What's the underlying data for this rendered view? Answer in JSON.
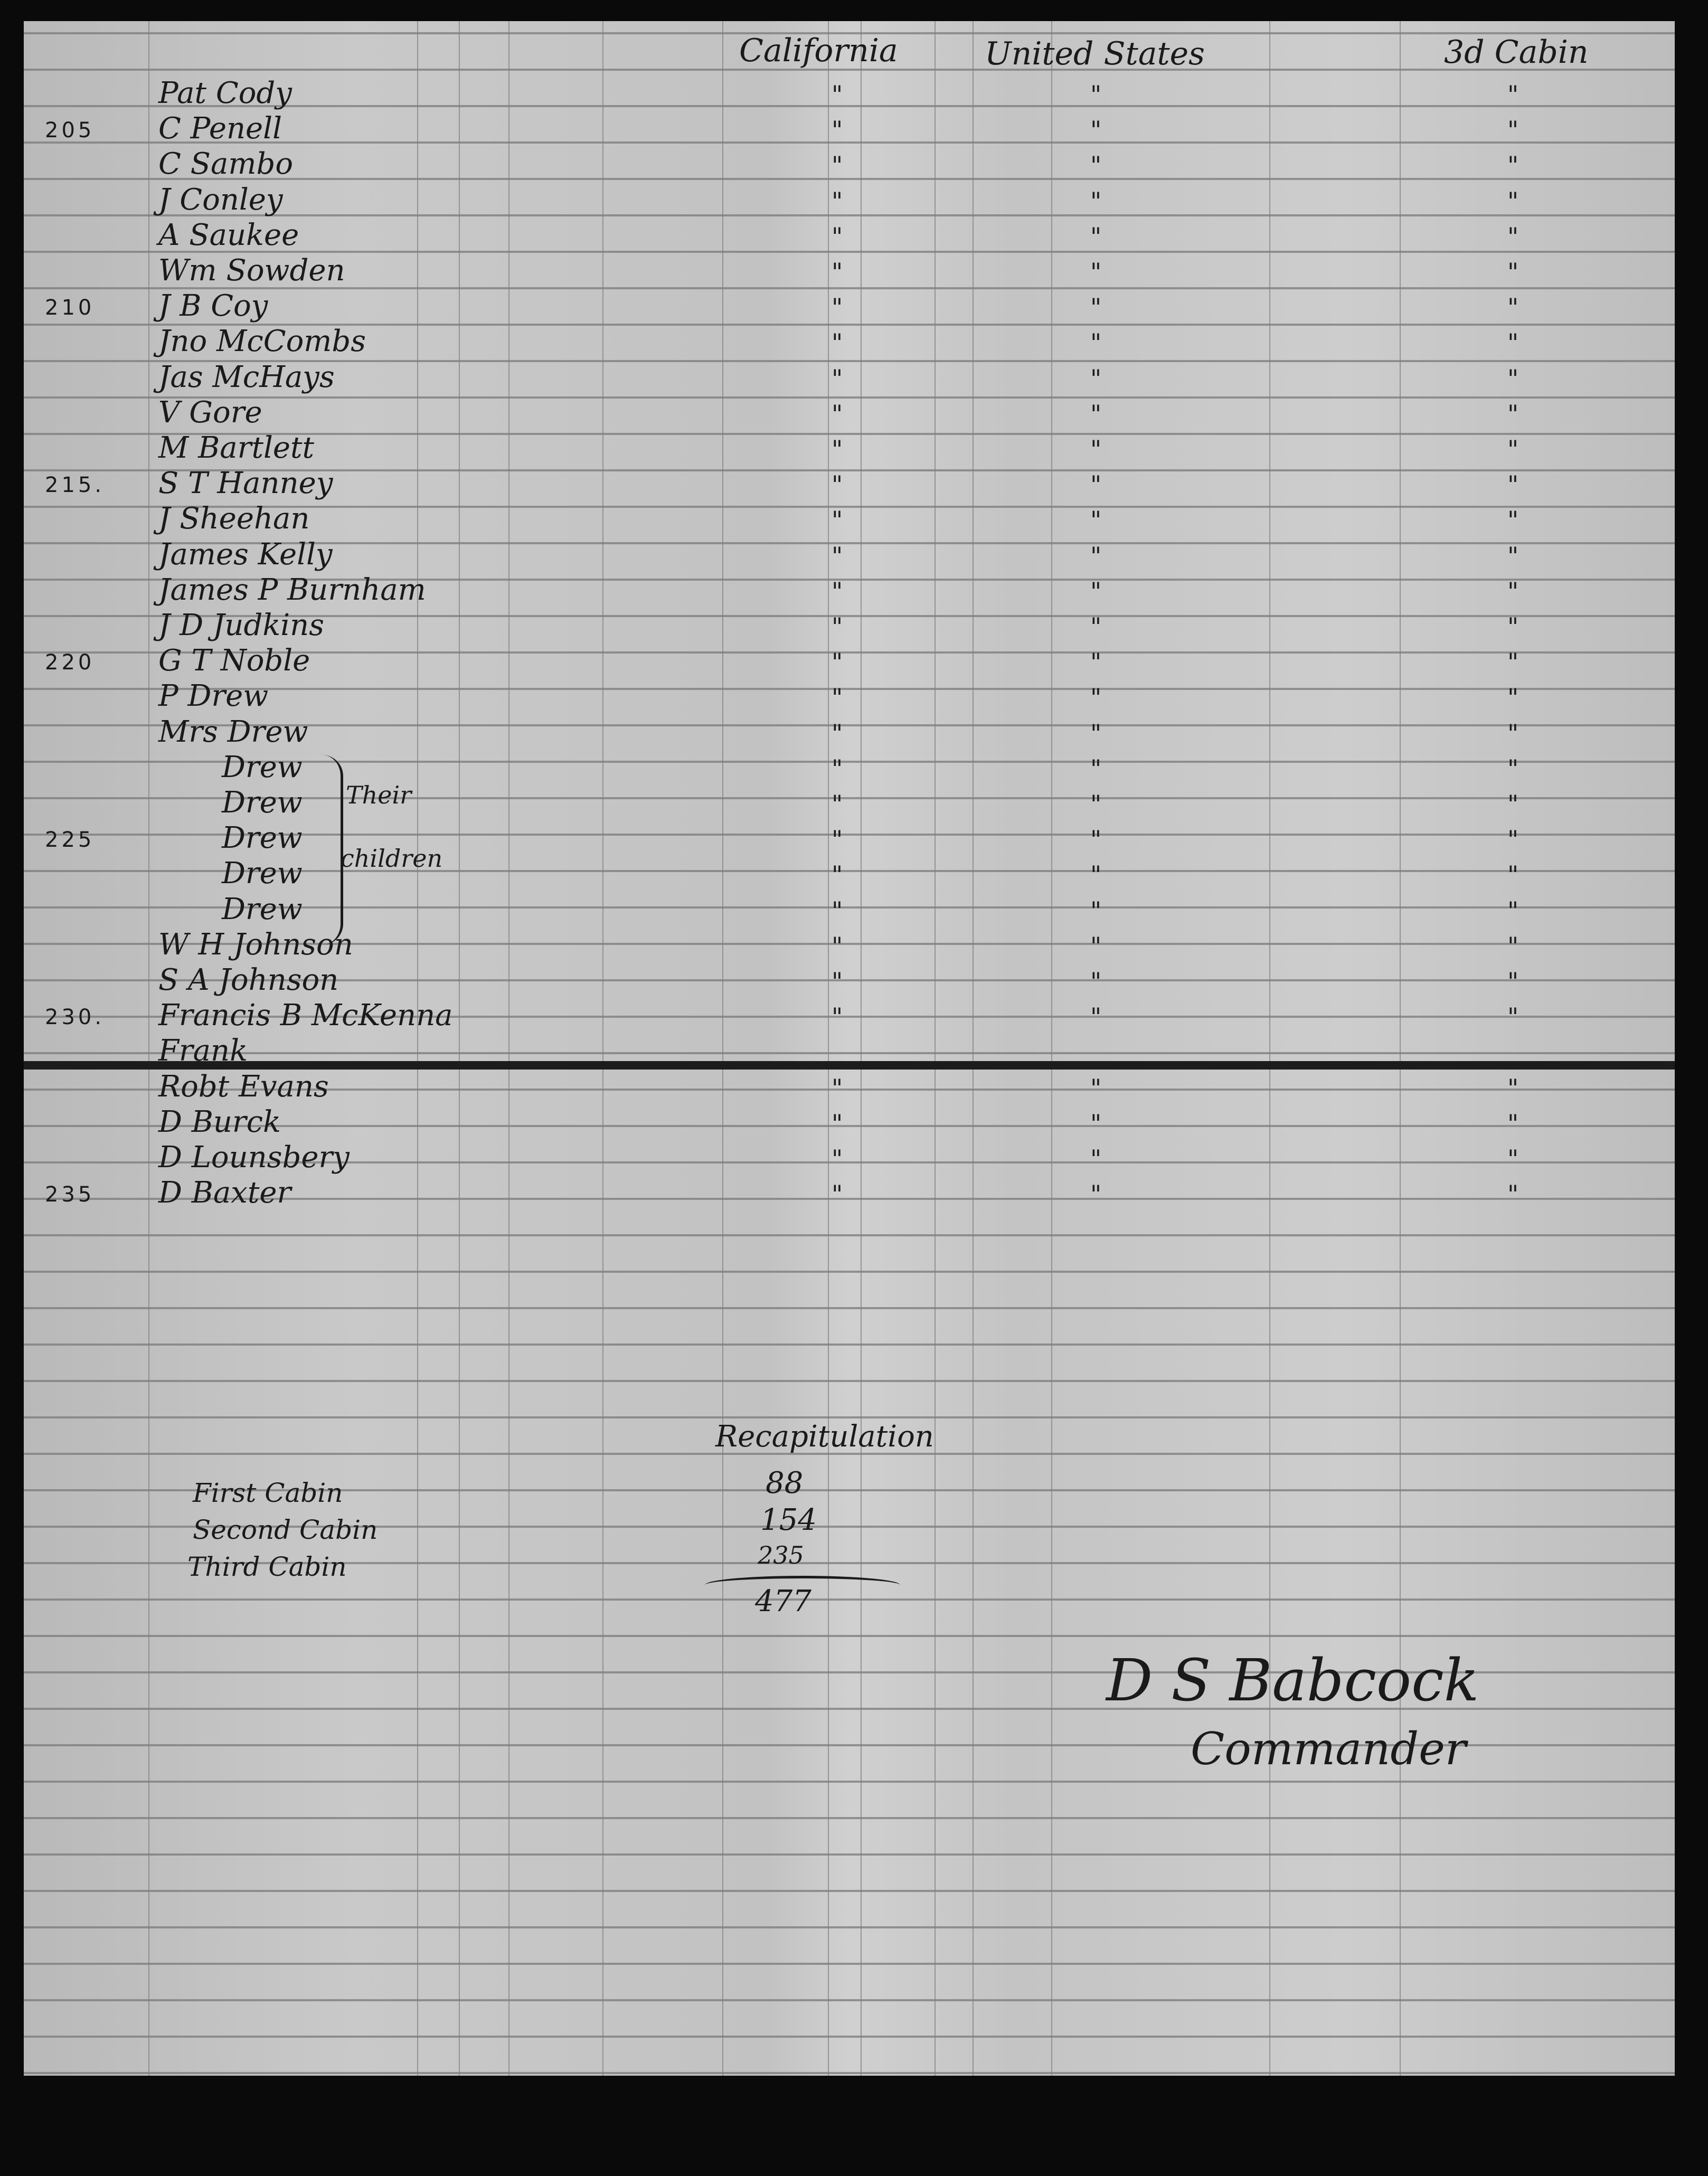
{
  "headers": {
    "name": "",
    "california": "California",
    "united_states": "United States",
    "third_cabin": "3d Cabin"
  },
  "ditto_mark": "\"",
  "rows": [
    {
      "number": "",
      "name": "Pat Cody",
      "ditto": [
        true,
        true,
        true
      ]
    },
    {
      "number": "205",
      "name": "C Penell",
      "ditto": [
        true,
        true,
        true
      ]
    },
    {
      "number": "",
      "name": "C Sambo",
      "ditto": [
        true,
        true,
        true
      ]
    },
    {
      "number": "",
      "name": "J Conley",
      "ditto": [
        true,
        true,
        true
      ]
    },
    {
      "number": "",
      "name": "A Saukee",
      "ditto": [
        true,
        true,
        true
      ]
    },
    {
      "number": "",
      "name": "Wm Sowden",
      "ditto": [
        true,
        true,
        true
      ]
    },
    {
      "number": "210",
      "name": "J B Coy",
      "ditto": [
        true,
        true,
        true
      ]
    },
    {
      "number": "",
      "name": "Jno McCombs",
      "ditto": [
        true,
        true,
        true
      ]
    },
    {
      "number": "",
      "name": "Jas McHays",
      "ditto": [
        true,
        true,
        true
      ]
    },
    {
      "number": "",
      "name": "V Gore",
      "ditto": [
        true,
        true,
        true
      ]
    },
    {
      "number": "",
      "name": "M Bartlett",
      "ditto": [
        true,
        true,
        true
      ]
    },
    {
      "number": "215.",
      "name": "S T Hanney",
      "ditto": [
        true,
        true,
        true
      ]
    },
    {
      "number": "",
      "name": "J Sheehan",
      "ditto": [
        true,
        true,
        true
      ]
    },
    {
      "number": "",
      "name": "James Kelly",
      "ditto": [
        true,
        true,
        true
      ]
    },
    {
      "number": "",
      "name": "James P Burnham",
      "ditto": [
        true,
        true,
        true
      ]
    },
    {
      "number": "",
      "name": "J D Judkins",
      "ditto": [
        true,
        true,
        true
      ]
    },
    {
      "number": "220",
      "name": "G T Noble",
      "ditto": [
        true,
        true,
        true
      ]
    },
    {
      "number": "",
      "name": "P Drew",
      "ditto": [
        true,
        true,
        true
      ]
    },
    {
      "number": "",
      "name": "Mrs Drew",
      "ditto": [
        true,
        true,
        true
      ]
    },
    {
      "number": "",
      "name": "Drew",
      "child": true,
      "ditto": [
        true,
        true,
        true
      ]
    },
    {
      "number": "",
      "name": "Drew",
      "child": true,
      "ditto": [
        true,
        true,
        true
      ]
    },
    {
      "number": "225",
      "name": "Drew",
      "child": true,
      "ditto": [
        true,
        true,
        true
      ]
    },
    {
      "number": "",
      "name": "Drew",
      "child": true,
      "ditto": [
        true,
        true,
        true
      ]
    },
    {
      "number": "",
      "name": "Drew",
      "child": true,
      "ditto": [
        true,
        true,
        true
      ]
    },
    {
      "number": "",
      "name": "W H Johnson",
      "ditto": [
        true,
        true,
        true
      ]
    },
    {
      "number": "",
      "name": "S A Johnson",
      "ditto": [
        true,
        true,
        true
      ]
    },
    {
      "number": "230.",
      "name": "Francis B McKenna",
      "ditto": [
        true,
        true,
        true
      ]
    },
    {
      "number": "",
      "name": "Frank",
      "ditto": [
        false,
        false,
        false
      ]
    },
    {
      "number": "",
      "name": "Robt Evans",
      "ditto": [
        true,
        true,
        true
      ]
    },
    {
      "number": "",
      "name": "D Burck",
      "ditto": [
        true,
        true,
        true
      ]
    },
    {
      "number": "",
      "name": "D Lounsbery",
      "ditto": [
        true,
        true,
        true
      ]
    },
    {
      "number": "235",
      "name": "D Baxter",
      "ditto": [
        true,
        true,
        true
      ]
    }
  ],
  "children_note": {
    "line1": "Their",
    "line2": "children"
  },
  "recapitulation": {
    "title": "Recapitulation",
    "items": [
      {
        "label": "First Cabin",
        "value": "88"
      },
      {
        "label": "Second Cabin",
        "value": "154"
      },
      {
        "label": "Third Cabin",
        "value": "235"
      }
    ],
    "total": "477"
  },
  "signature": {
    "name": "D S Babcock",
    "title": "Commander"
  }
}
